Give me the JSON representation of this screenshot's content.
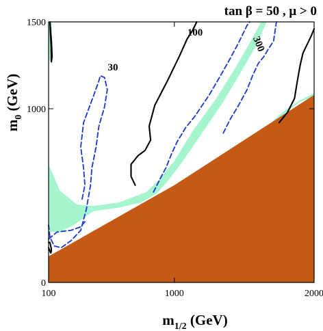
{
  "chart_data": {
    "type": "contour",
    "title": "tan β = 50 ,  μ > 0",
    "xlabel": {
      "main": "m",
      "sub": "1/2",
      "unit": " (GeV)"
    },
    "ylabel": {
      "main": "m",
      "sub": "0",
      "unit": " (GeV)"
    },
    "xlim": [
      100,
      2000
    ],
    "ylim": [
      0,
      1500
    ],
    "xticks": [
      100,
      1000,
      2000
    ],
    "yticks": [
      0,
      1000,
      1500
    ],
    "xtick_labels": [
      "100",
      "1000",
      "2000"
    ],
    "ytick_labels": [
      "0",
      "1000",
      "1500"
    ],
    "grid": false,
    "colors": {
      "excluded_region": "#c45a16",
      "cosmology_band": "#a6f5cf",
      "solid_contour": "#000000",
      "dashed_contour": "#1f3fd1",
      "frame": "#000000"
    },
    "regions": {
      "excluded_wedge": [
        [
          100,
          0
        ],
        [
          2000,
          0
        ],
        [
          2000,
          1080
        ],
        [
          1000,
          560
        ],
        [
          100,
          150
        ]
      ],
      "cosmology_band_main": [
        [
          100,
          680
        ],
        [
          180,
          530
        ],
        [
          300,
          450
        ],
        [
          420,
          440
        ],
        [
          600,
          460
        ],
        [
          800,
          520
        ],
        [
          900,
          600
        ],
        [
          1000,
          700
        ],
        [
          1130,
          870
        ],
        [
          1300,
          1060
        ],
        [
          1440,
          1240
        ],
        [
          1540,
          1380
        ],
        [
          1620,
          1500
        ],
        [
          1660,
          1500
        ],
        [
          1590,
          1370
        ],
        [
          1490,
          1230
        ],
        [
          1350,
          1040
        ],
        [
          1190,
          850
        ],
        [
          1080,
          720
        ],
        [
          960,
          590
        ],
        [
          870,
          510
        ],
        [
          760,
          460
        ],
        [
          600,
          430
        ],
        [
          420,
          410
        ],
        [
          280,
          330
        ],
        [
          180,
          290
        ],
        [
          100,
          290
        ]
      ],
      "cosmology_band_left": [
        [
          100,
          1500
        ],
        [
          122,
          1500
        ],
        [
          122,
          1360
        ],
        [
          120,
          1300
        ],
        [
          108,
          1270
        ],
        [
          100,
          1280
        ]
      ],
      "cosmology_band_right": [
        [
          1700,
          900
        ],
        [
          1800,
          980
        ],
        [
          1900,
          1040
        ],
        [
          2000,
          1070
        ],
        [
          2000,
          1090
        ],
        [
          1900,
          1050
        ],
        [
          1790,
          990
        ],
        [
          1705,
          930
        ]
      ]
    },
    "contours": [
      {
        "label": "30",
        "style": "dashed",
        "points": [
          [
            340,
            480
          ],
          [
            360,
            560
          ],
          [
            350,
            660
          ],
          [
            330,
            780
          ],
          [
            350,
            920
          ],
          [
            420,
            1070
          ],
          [
            460,
            1160
          ],
          [
            470,
            1190
          ],
          [
            500,
            1180
          ],
          [
            520,
            1110
          ],
          [
            500,
            1010
          ],
          [
            460,
            900
          ],
          [
            440,
            780
          ],
          [
            410,
            660
          ],
          [
            400,
            560
          ],
          [
            370,
            420
          ],
          [
            330,
            300
          ],
          [
            260,
            240
          ],
          [
            190,
            200
          ],
          [
            140,
            210
          ],
          [
            110,
            260
          ],
          [
            100,
            330
          ]
        ]
      },
      {
        "label": "100",
        "style": "solid",
        "points": [
          [
            720,
            560
          ],
          [
            690,
            610
          ],
          [
            690,
            680
          ],
          [
            740,
            730
          ],
          [
            790,
            760
          ],
          [
            830,
            820
          ],
          [
            820,
            900
          ],
          [
            860,
            1020
          ],
          [
            950,
            1160
          ],
          [
            1040,
            1310
          ],
          [
            1090,
            1400
          ],
          [
            1130,
            1450
          ],
          [
            1160,
            1500
          ]
        ]
      },
      {
        "label": "300",
        "style": "dashed",
        "points": [
          [
            1350,
            860
          ],
          [
            1400,
            940
          ],
          [
            1460,
            1020
          ],
          [
            1520,
            1110
          ],
          [
            1560,
            1190
          ],
          [
            1600,
            1260
          ],
          [
            1640,
            1300
          ],
          [
            1670,
            1340
          ],
          [
            1710,
            1390
          ],
          [
            1730,
            1500
          ]
        ]
      },
      {
        "label": "",
        "style": "solid",
        "points": [
          [
            1750,
            920
          ],
          [
            1810,
            980
          ],
          [
            1860,
            1060
          ],
          [
            1880,
            1160
          ],
          [
            1900,
            1250
          ],
          [
            1920,
            1320
          ],
          [
            1980,
            1420
          ],
          [
            2000,
            1460
          ]
        ]
      },
      {
        "label": "",
        "style": "dashed",
        "points": [
          [
            850,
            520
          ],
          [
            900,
            600
          ],
          [
            940,
            660
          ],
          [
            980,
            740
          ],
          [
            1020,
            810
          ],
          [
            1080,
            890
          ],
          [
            1150,
            960
          ],
          [
            1250,
            1080
          ],
          [
            1330,
            1190
          ],
          [
            1400,
            1290
          ],
          [
            1460,
            1380
          ],
          [
            1520,
            1480
          ],
          [
            1540,
            1500
          ]
        ]
      },
      {
        "label": "",
        "style": "dashed",
        "points": [
          [
            100,
            250
          ],
          [
            160,
            290
          ],
          [
            260,
            300
          ],
          [
            330,
            320
          ],
          [
            360,
            350
          ]
        ]
      },
      {
        "label": "",
        "style": "solid",
        "points": [
          [
            110,
            1500
          ],
          [
            120,
            1390
          ],
          [
            125,
            1300
          ],
          [
            120,
            1270
          ],
          [
            118,
            1360
          ],
          [
            114,
            1420
          ],
          [
            110,
            1500
          ]
        ]
      },
      {
        "label": "",
        "style": "solid",
        "points": [
          [
            100,
            200
          ],
          [
            115,
            170
          ],
          [
            120,
            180
          ],
          [
            118,
            200
          ],
          [
            110,
            230
          ],
          [
            100,
            230
          ]
        ]
      }
    ]
  }
}
